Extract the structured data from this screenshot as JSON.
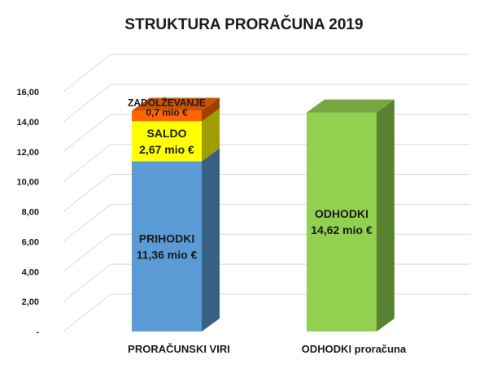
{
  "chart_data": {
    "type": "bar",
    "stacked": true,
    "three_d": true,
    "title": "STRUKTURA PRORAČUNA 2019",
    "xlabel": "",
    "ylabel": "",
    "ylim": [
      0,
      16
    ],
    "grid": true,
    "y_tick_labels": [
      "-",
      "2,00",
      "4,00",
      "6,00",
      "8,00",
      "10,00",
      "12,00",
      "14,00",
      "16,00"
    ],
    "y_tick_values": [
      0,
      2,
      4,
      6,
      8,
      10,
      12,
      14,
      16
    ],
    "categories": [
      "PRORAČUNSKI VIRI",
      "ODHODKI proračuna"
    ],
    "series": [
      {
        "name": "PRIHODKI",
        "values": [
          11.36,
          null
        ],
        "color": "#5b9bd5",
        "label_lines": [
          "PRIHODKI",
          "11,36 mio €"
        ]
      },
      {
        "name": "SALDO",
        "values": [
          2.67,
          null
        ],
        "color": "#ffff00",
        "label_lines": [
          "SALDO",
          "2,67 mio €"
        ]
      },
      {
        "name": "ZADOLŽEVANJE",
        "values": [
          0.7,
          null
        ],
        "color": "#ff6600",
        "label_lines": [
          "ZADOLŽEVANJE",
          "0,7 mio €"
        ]
      },
      {
        "name": "ODHODKI",
        "values": [
          null,
          14.62
        ],
        "color": "#92d050",
        "label_lines": [
          "ODHODKI",
          "14,62 mio €"
        ]
      }
    ]
  }
}
